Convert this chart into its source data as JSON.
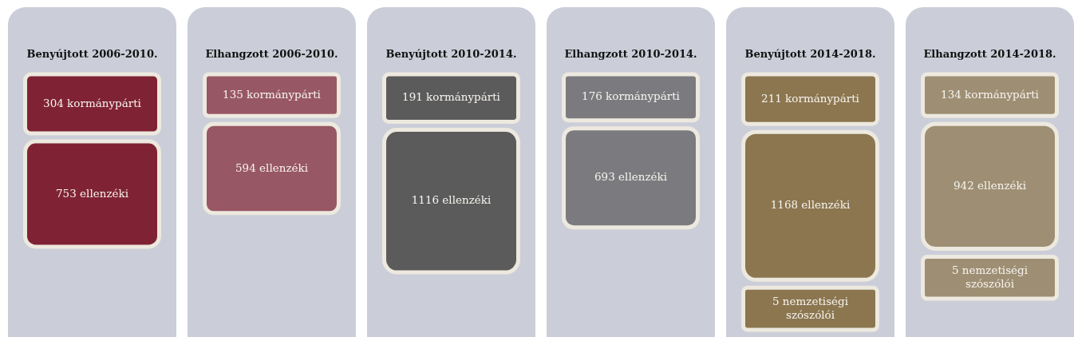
{
  "chart_data": [
    {
      "type": "other",
      "title": "Benyújtott 2006-2010.",
      "categories": [
        "kormánypárti",
        "ellenzéki"
      ],
      "values": [
        304,
        753
      ],
      "color": "#7f2334",
      "data_labels": true
    },
    {
      "type": "other",
      "title": "Elhangzott 2006-2010.",
      "categories": [
        "kormánypárti",
        "ellenzéki"
      ],
      "values": [
        135,
        594
      ],
      "color": "#985764",
      "data_labels": true
    },
    {
      "type": "other",
      "title": "Benyújtott 2010-2014.",
      "categories": [
        "kormánypárti",
        "ellenzéki"
      ],
      "values": [
        191,
        1116
      ],
      "color": "#5b5b5b",
      "data_labels": true
    },
    {
      "type": "other",
      "title": "Elhangzott 2010-2014.",
      "categories": [
        "kormánypárti",
        "ellenzéki"
      ],
      "values": [
        176,
        693
      ],
      "color": "#7b7b7f",
      "data_labels": true
    },
    {
      "type": "other",
      "title": "Benyújtott 2014-2018.",
      "categories": [
        "kormánypárti",
        "ellenzéki",
        "nemzetiségi szószólói"
      ],
      "values": [
        211,
        1168,
        5
      ],
      "color": "#8b7650",
      "data_labels": true
    },
    {
      "type": "other",
      "title": "Elhangzott 2014-2018.",
      "categories": [
        "kormánypárti",
        "ellenzéki",
        "nemzetiségi szószólói"
      ],
      "values": [
        134,
        942,
        5
      ],
      "color": "#9e8f74",
      "data_labels": true
    }
  ]
}
